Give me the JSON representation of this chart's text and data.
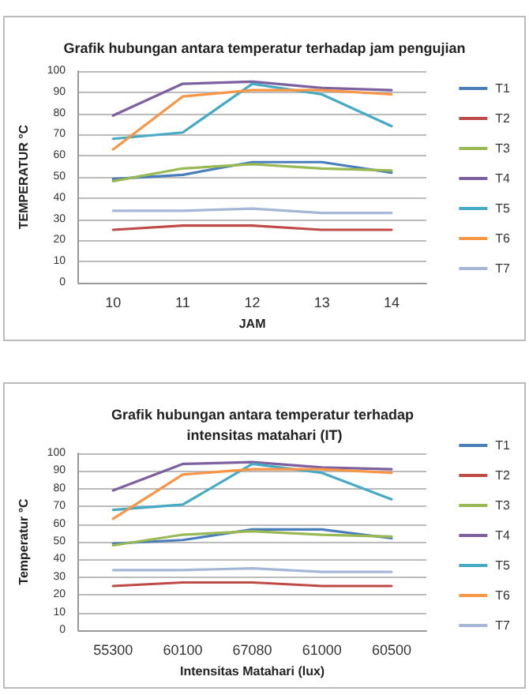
{
  "chart_data": [
    {
      "type": "line",
      "title": "Grafik hubungan antara temperatur terhadap jam pengujian",
      "xlabel": "JAM",
      "ylabel": "TEMPERATUR °C",
      "categories": [
        "10",
        "11",
        "12",
        "13",
        "14"
      ],
      "ylim": [
        0,
        100
      ],
      "yticks": [
        0,
        10,
        20,
        30,
        40,
        50,
        60,
        70,
        80,
        90,
        100
      ],
      "grid": "y",
      "legend": "right",
      "marker": "none",
      "series": [
        {
          "name": "T1",
          "color": "#4a7ebb",
          "values": [
            49,
            51,
            57,
            57,
            52
          ]
        },
        {
          "name": "T2",
          "color": "#be4b48",
          "values": [
            25,
            27,
            27,
            25,
            25
          ]
        },
        {
          "name": "T3",
          "color": "#98b954",
          "values": [
            48,
            54,
            56,
            54,
            53
          ]
        },
        {
          "name": "T4",
          "color": "#7d60a0",
          "values": [
            79,
            94,
            95,
            92,
            91
          ]
        },
        {
          "name": "T5",
          "color": "#46aac5",
          "values": [
            68,
            71,
            94,
            89,
            74
          ]
        },
        {
          "name": "T6",
          "color": "#f79646",
          "values": [
            63,
            88,
            91,
            91,
            89
          ]
        },
        {
          "name": "T7",
          "color": "#a5b6d8",
          "values": [
            34,
            34,
            35,
            33,
            33
          ]
        }
      ]
    },
    {
      "type": "line",
      "title": "Grafik hubungan antara temperatur terhadap intensitas matahari (IT)",
      "xlabel": "Intensitas Matahari (lux)",
      "ylabel": "Temperatur °C",
      "categories": [
        "55300",
        "60100",
        "67080",
        "61000",
        "60500"
      ],
      "ylim": [
        0,
        100
      ],
      "yticks": [
        0,
        10,
        20,
        30,
        40,
        50,
        60,
        70,
        80,
        90,
        100
      ],
      "grid": "y",
      "legend": "right",
      "marker": "none",
      "series": [
        {
          "name": "T1",
          "color": "#4a7ebb",
          "values": [
            49,
            51,
            57,
            57,
            52
          ]
        },
        {
          "name": "T2",
          "color": "#be4b48",
          "values": [
            25,
            27,
            27,
            25,
            25
          ]
        },
        {
          "name": "T3",
          "color": "#98b954",
          "values": [
            48,
            54,
            56,
            54,
            53
          ]
        },
        {
          "name": "T4",
          "color": "#7d60a0",
          "values": [
            79,
            94,
            95,
            92,
            91
          ]
        },
        {
          "name": "T5",
          "color": "#46aac5",
          "values": [
            68,
            71,
            94,
            89,
            74
          ]
        },
        {
          "name": "T6",
          "color": "#f79646",
          "values": [
            63,
            88,
            91,
            91,
            89
          ]
        },
        {
          "name": "T7",
          "color": "#a5b6d8",
          "values": [
            34,
            34,
            35,
            33,
            33
          ]
        }
      ]
    }
  ]
}
